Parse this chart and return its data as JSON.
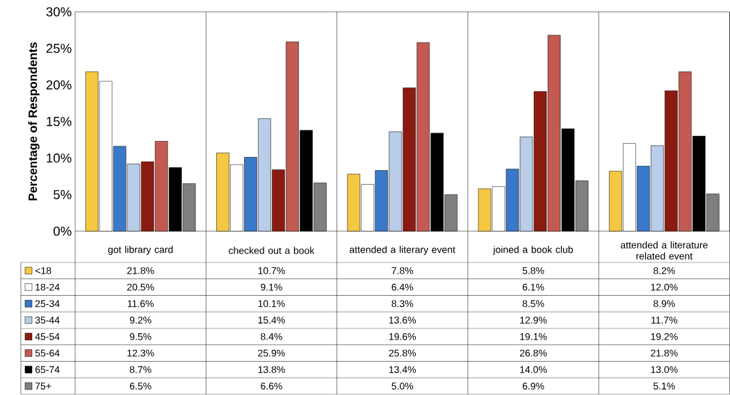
{
  "chart_data": {
    "type": "bar",
    "ylabel": "Percentage of Respondents",
    "categories": [
      "got library card",
      "checked out a book",
      "attended a literary event",
      "joined a book club",
      "attended a literature related event"
    ],
    "ylim": [
      0,
      30
    ],
    "yticks": [
      {
        "value": 0,
        "label": "0%"
      },
      {
        "value": 5,
        "label": "5%"
      },
      {
        "value": 10,
        "label": "10%"
      },
      {
        "value": 15,
        "label": "15%"
      },
      {
        "value": 20,
        "label": "20%"
      },
      {
        "value": 25,
        "label": "25%"
      },
      {
        "value": 30,
        "label": "30%"
      }
    ],
    "legend": "bottom",
    "grid": "x",
    "series": [
      {
        "name": "<18",
        "color": "#f5c842",
        "values": [
          21.8,
          10.7,
          7.8,
          5.8,
          8.2
        ],
        "value_labels": [
          "21.8%",
          "10.7%",
          "7.8%",
          "5.8%",
          "8.2%"
        ]
      },
      {
        "name": "18-24",
        "color": "#ffffff",
        "values": [
          20.5,
          9.1,
          6.4,
          6.1,
          12.0
        ],
        "value_labels": [
          "20.5%",
          "9.1%",
          "6.4%",
          "6.1%",
          "12.0%"
        ]
      },
      {
        "name": "25-34",
        "color": "#3a78c9",
        "values": [
          11.6,
          10.1,
          8.3,
          8.5,
          8.9
        ],
        "value_labels": [
          "11.6%",
          "10.1%",
          "8.3%",
          "8.5%",
          "8.9%"
        ]
      },
      {
        "name": "35-44",
        "color": "#b9cde8",
        "values": [
          9.2,
          15.4,
          13.6,
          12.9,
          11.7
        ],
        "value_labels": [
          "9.2%",
          "15.4%",
          "13.6%",
          "12.9%",
          "11.7%"
        ]
      },
      {
        "name": "45-54",
        "color": "#8b1a10",
        "values": [
          9.5,
          8.4,
          19.6,
          19.1,
          19.2
        ],
        "value_labels": [
          "9.5%",
          "8.4%",
          "19.6%",
          "19.1%",
          "19.2%"
        ]
      },
      {
        "name": "55-64",
        "color": "#c25a52",
        "values": [
          12.3,
          25.9,
          25.8,
          26.8,
          21.8
        ],
        "value_labels": [
          "12.3%",
          "25.9%",
          "25.8%",
          "26.8%",
          "21.8%"
        ]
      },
      {
        "name": "65-74",
        "color": "#000000",
        "values": [
          8.7,
          13.8,
          13.4,
          14.0,
          13.0
        ],
        "value_labels": [
          "8.7%",
          "13.8%",
          "13.4%",
          "14.0%",
          "13.0%"
        ]
      },
      {
        "name": "75+",
        "color": "#7f7f7f",
        "values": [
          6.5,
          6.6,
          5.0,
          6.9,
          5.1
        ],
        "value_labels": [
          "6.5%",
          "6.6%",
          "5.0%",
          "6.9%",
          "5.1%"
        ]
      }
    ]
  }
}
